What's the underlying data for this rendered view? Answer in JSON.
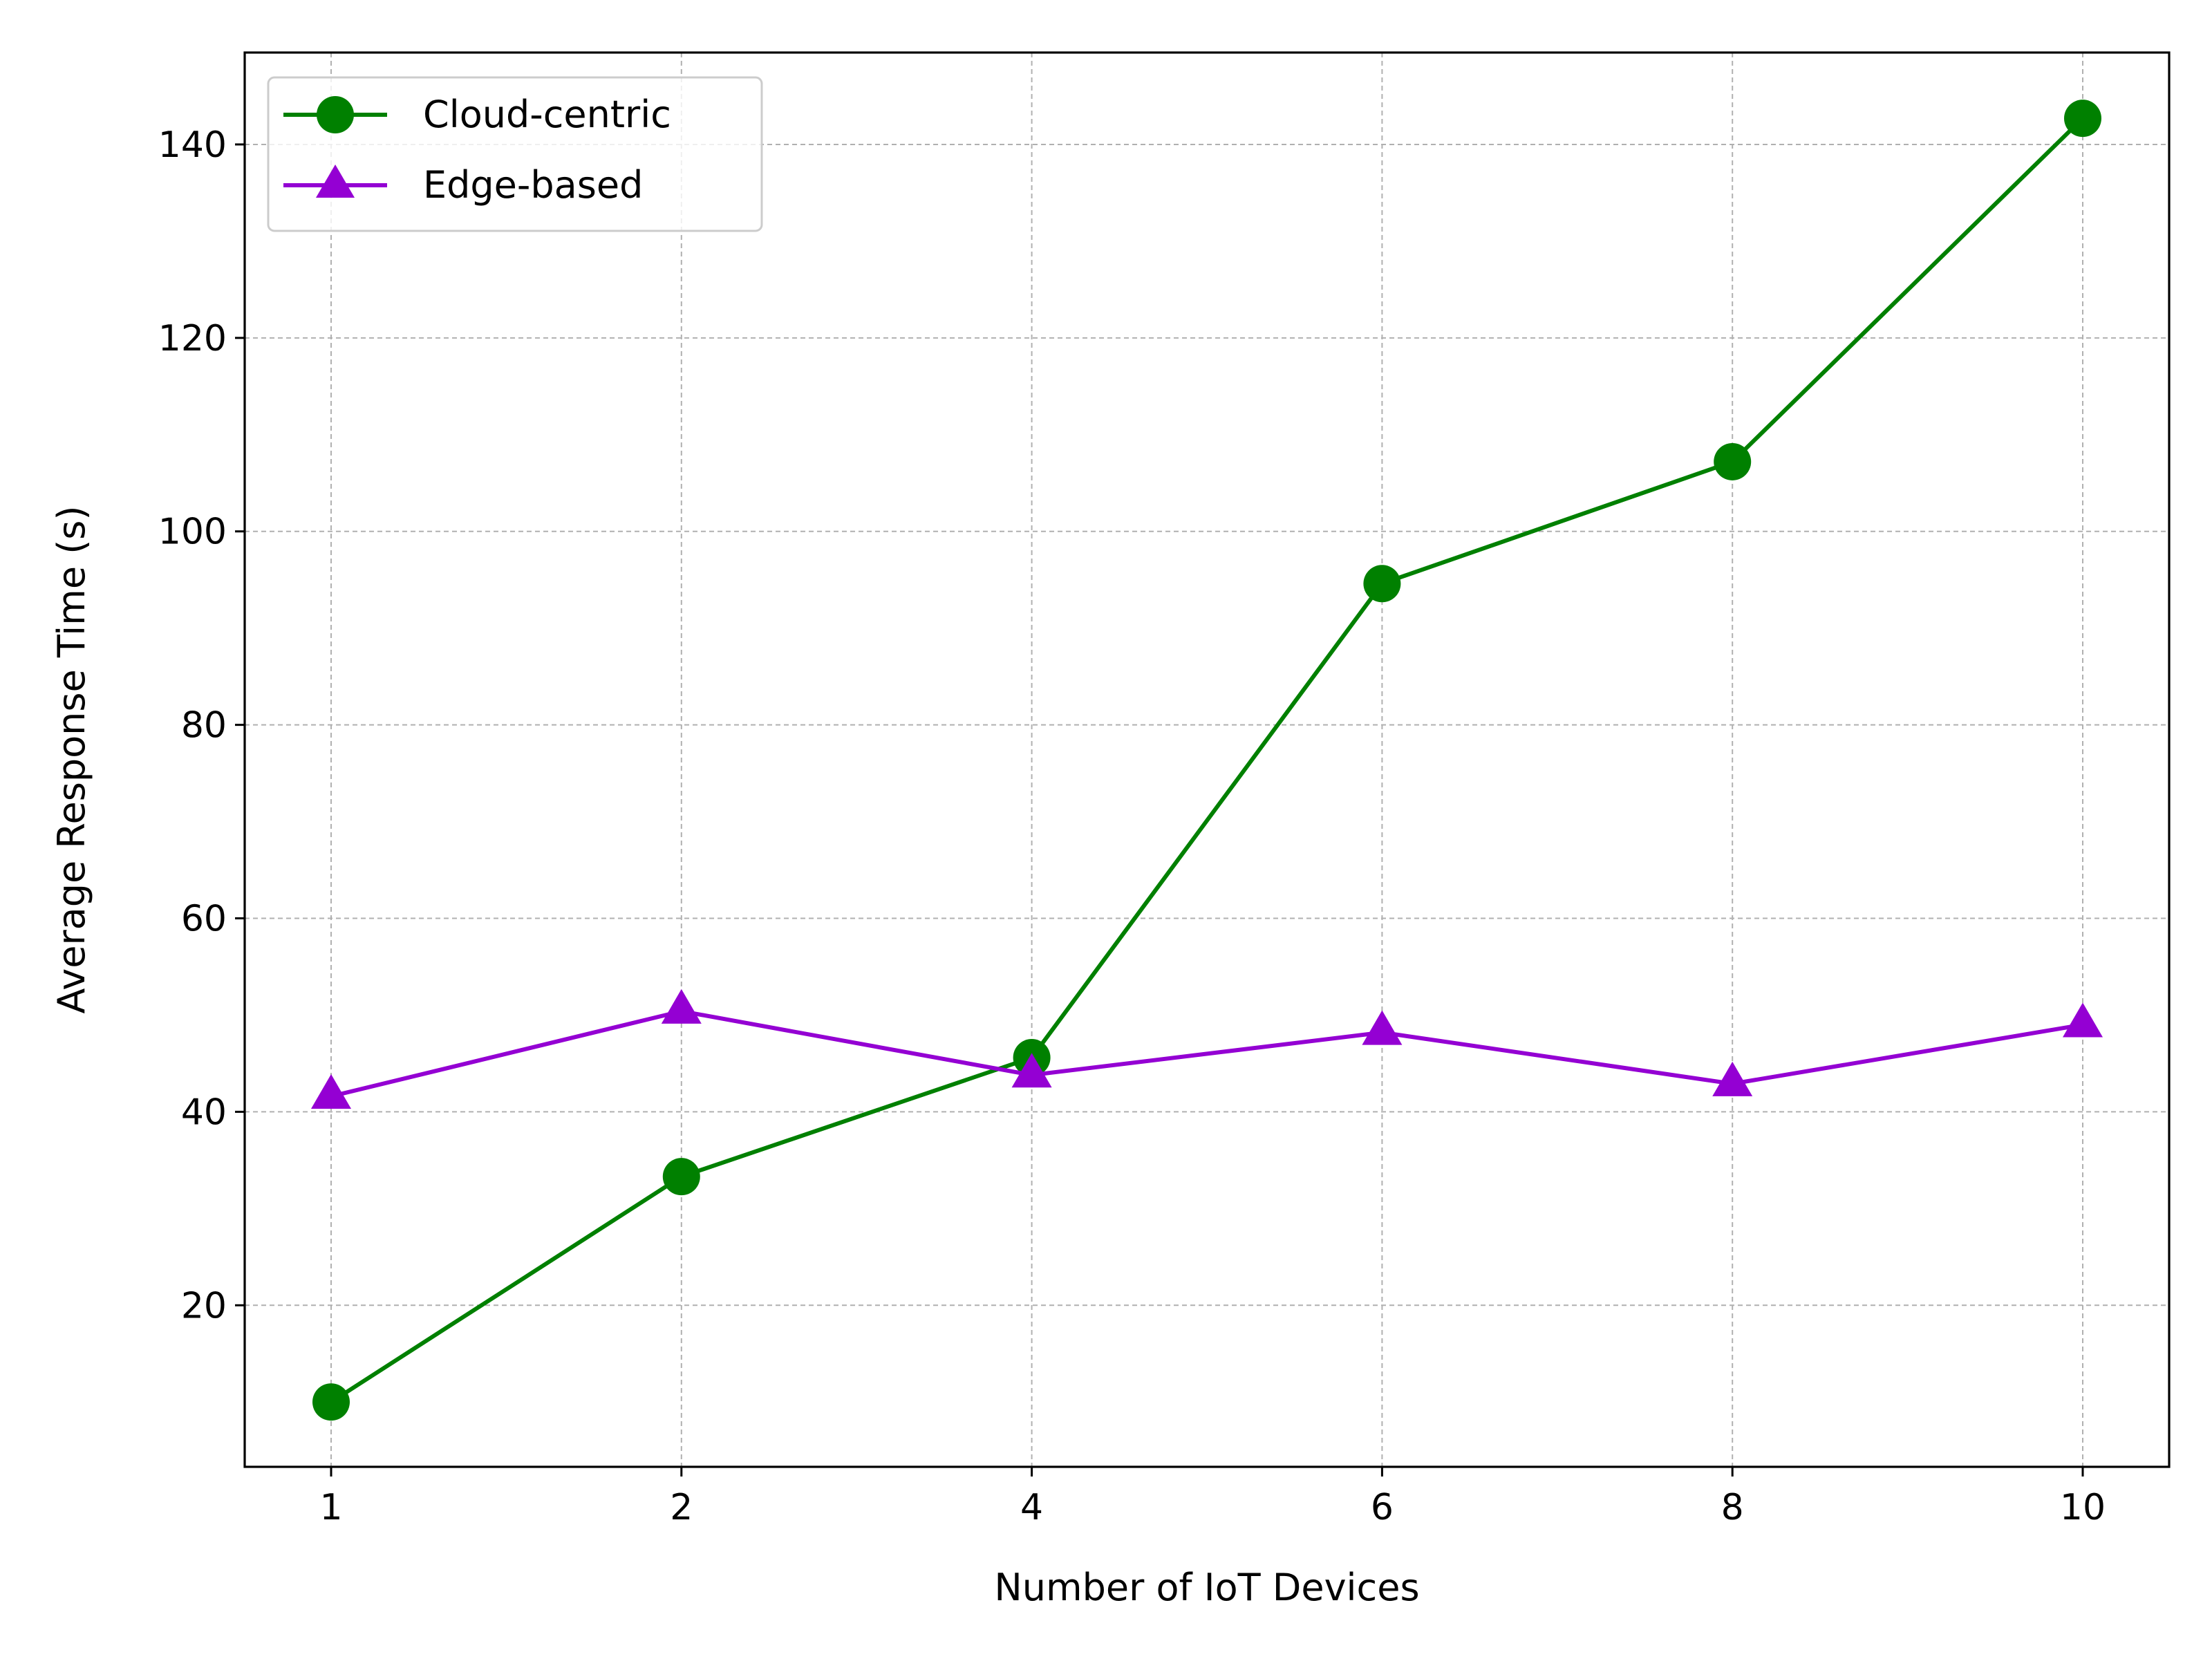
{
  "chart_data": {
    "type": "line",
    "title": "",
    "xlabel": "Number of IoT Devices",
    "ylabel": "Average Response Time (s)",
    "x": [
      1,
      2,
      4,
      6,
      8,
      10
    ],
    "x_tick_labels": [
      "1",
      "2",
      "4",
      "6",
      "8",
      "10"
    ],
    "y_ticks": [
      20,
      40,
      60,
      80,
      100,
      120,
      140
    ],
    "y_tick_labels": [
      "20",
      "40",
      "60",
      "80",
      "100",
      "120",
      "140"
    ],
    "ylim": [
      3.3,
      149.5
    ],
    "grid": true,
    "legend_position": "top-left",
    "series": [
      {
        "name": "Cloud-centric",
        "marker": "circle",
        "color": "#008000",
        "values": [
          10.0,
          33.3,
          45.6,
          94.6,
          107.2,
          142.7
        ]
      },
      {
        "name": "Edge-based",
        "marker": "triangle",
        "color": "#9400D3",
        "values": [
          41.6,
          50.4,
          43.8,
          48.2,
          42.9,
          49.0
        ]
      }
    ]
  }
}
